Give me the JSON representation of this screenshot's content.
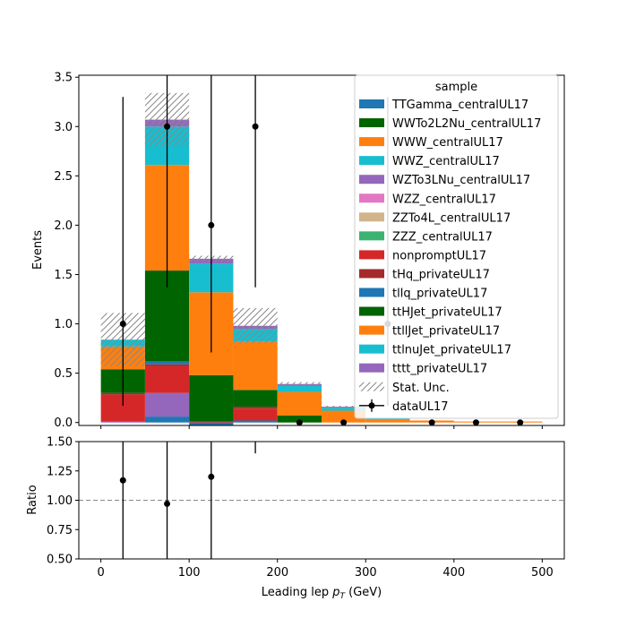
{
  "chart_data": {
    "type": "bar",
    "stacked": true,
    "bin_edges": [
      0,
      50,
      100,
      150,
      200,
      250,
      300,
      350,
      400,
      450,
      500
    ],
    "xlabel_main": "Leading lep ",
    "xlabel_math": "p",
    "xlabel_sub": "T",
    "xlabel_unit": " (GeV)",
    "ylabel": "Events",
    "ratio_ylabel": "Ratio",
    "xlim": [
      -25,
      525
    ],
    "ylim": [
      -0.03,
      3.52
    ],
    "ratio_ylim": [
      0.5,
      1.5
    ],
    "x_ticks": [
      0,
      100,
      200,
      300,
      400,
      500
    ],
    "y_ticks": [
      0.0,
      0.5,
      1.0,
      1.5,
      2.0,
      2.5,
      3.0,
      3.5
    ],
    "ratio_y_ticks": [
      0.5,
      0.75,
      1.0,
      1.25,
      1.5
    ],
    "legend_title": "sample",
    "legend_position": "top-right",
    "series": [
      {
        "name": "TTGamma_centralUL17",
        "color": "#1f77b4",
        "values": [
          0.0,
          0.06,
          -0.03,
          0.02,
          0.0,
          0.0,
          0.0,
          0.0,
          0.0,
          0.0
        ]
      },
      {
        "name": "WWTo2L2Nu_centralUL17",
        "color": "#006400",
        "values": [
          0.0,
          0.0,
          0.0,
          0.0,
          0.0,
          0.0,
          0.0,
          0.0,
          0.0,
          0.0
        ]
      },
      {
        "name": "WWW_centralUL17",
        "color": "#ff7f0e",
        "values": [
          0.0,
          0.0,
          0.0,
          0.0,
          0.0,
          0.0,
          0.0,
          0.0,
          0.0,
          0.0
        ]
      },
      {
        "name": "WWZ_centralUL17",
        "color": "#17becf",
        "values": [
          0.0,
          0.0,
          0.0,
          0.0,
          0.0,
          0.0,
          0.0,
          0.0,
          0.0,
          0.0
        ]
      },
      {
        "name": "WZTo3LNu_centralUL17",
        "color": "#9467bd",
        "values": [
          0.01,
          0.24,
          0.0,
          0.0,
          0.0,
          0.0,
          0.0,
          0.0,
          0.0,
          0.0
        ]
      },
      {
        "name": "WZZ_centralUL17",
        "color": "#e377c2",
        "values": [
          0.0,
          0.0,
          0.0,
          0.0,
          0.0,
          0.0,
          0.0,
          0.0,
          0.0,
          0.0
        ]
      },
      {
        "name": "ZZTo4L_centralUL17",
        "color": "#d2b48c",
        "values": [
          0.0,
          0.0,
          0.0,
          0.0,
          0.0,
          0.0,
          0.0,
          0.0,
          0.0,
          0.0
        ]
      },
      {
        "name": "ZZZ_centralUL17",
        "color": "#3cb371",
        "values": [
          0.0,
          0.0,
          0.0,
          0.0,
          0.0,
          0.0,
          0.0,
          0.0,
          0.0,
          0.0
        ]
      },
      {
        "name": "nonpromptUL17",
        "color": "#d62728",
        "values": [
          0.27,
          0.27,
          0.01,
          0.12,
          0.0,
          0.0,
          0.0,
          0.0,
          0.0,
          0.0
        ]
      },
      {
        "name": "tHq_privateUL17",
        "color": "#a52a2a",
        "values": [
          0.02,
          0.02,
          0.0,
          0.02,
          0.0,
          0.0,
          0.0,
          0.0,
          0.0,
          0.0
        ]
      },
      {
        "name": "tllq_privateUL17",
        "color": "#1f77b4",
        "values": [
          0.0,
          0.03,
          0.0,
          0.0,
          0.0,
          0.0,
          0.0,
          0.0,
          0.0,
          0.0
        ]
      },
      {
        "name": "ttHJet_privateUL17",
        "color": "#006400",
        "values": [
          0.24,
          0.92,
          0.47,
          0.17,
          0.07,
          0.0,
          0.0,
          0.0,
          0.0,
          0.0
        ]
      },
      {
        "name": "ttllJet_privateUL17",
        "color": "#ff7f0e",
        "values": [
          0.23,
          1.07,
          0.84,
          0.49,
          0.24,
          0.12,
          0.03,
          0.02,
          0.01,
          0.01
        ]
      },
      {
        "name": "ttlnuJet_privateUL17",
        "color": "#17becf",
        "values": [
          0.07,
          0.39,
          0.29,
          0.13,
          0.06,
          0.03,
          0.01,
          0.0,
          0.0,
          0.0
        ]
      },
      {
        "name": "tttt_privateUL17",
        "color": "#9467bd",
        "values": [
          0.0,
          0.07,
          0.05,
          0.03,
          0.02,
          0.01,
          0.0,
          0.0,
          0.0,
          0.0
        ]
      }
    ],
    "stat_unc": {
      "name": "Stat. Unc.",
      "totals": [
        0.84,
        3.07,
        1.66,
        0.98,
        0.39,
        0.16,
        0.04,
        0.02,
        0.01,
        0.01
      ],
      "errors": [
        0.27,
        0.27,
        0.03,
        0.18,
        0.02,
        0.01,
        0.0,
        0.0,
        0.0,
        0.0
      ]
    },
    "data": {
      "name": "dataUL17",
      "x": [
        25,
        75,
        125,
        175,
        225,
        275,
        325,
        375,
        425,
        475
      ],
      "y": [
        1,
        3,
        2,
        3,
        0,
        0,
        1,
        0,
        0,
        0
      ],
      "err_lo": [
        0.83,
        1.63,
        1.29,
        1.63,
        0,
        0,
        0.83,
        0,
        0,
        0
      ],
      "err_hi": [
        2.3,
        2.92,
        2.64,
        2.92,
        1.84,
        1.84,
        2.3,
        1.84,
        1.84,
        1.84
      ]
    },
    "ratio": {
      "x": [
        25,
        75,
        125,
        175
      ],
      "y": [
        1.17,
        0.97,
        1.2,
        3.06
      ],
      "err_lo": [
        1.0,
        0.97,
        1.0,
        1.66
      ],
      "err_hi": [
        2.73,
        0.95,
        1.59,
        2.98
      ],
      "reference_line": 1.0
    }
  }
}
